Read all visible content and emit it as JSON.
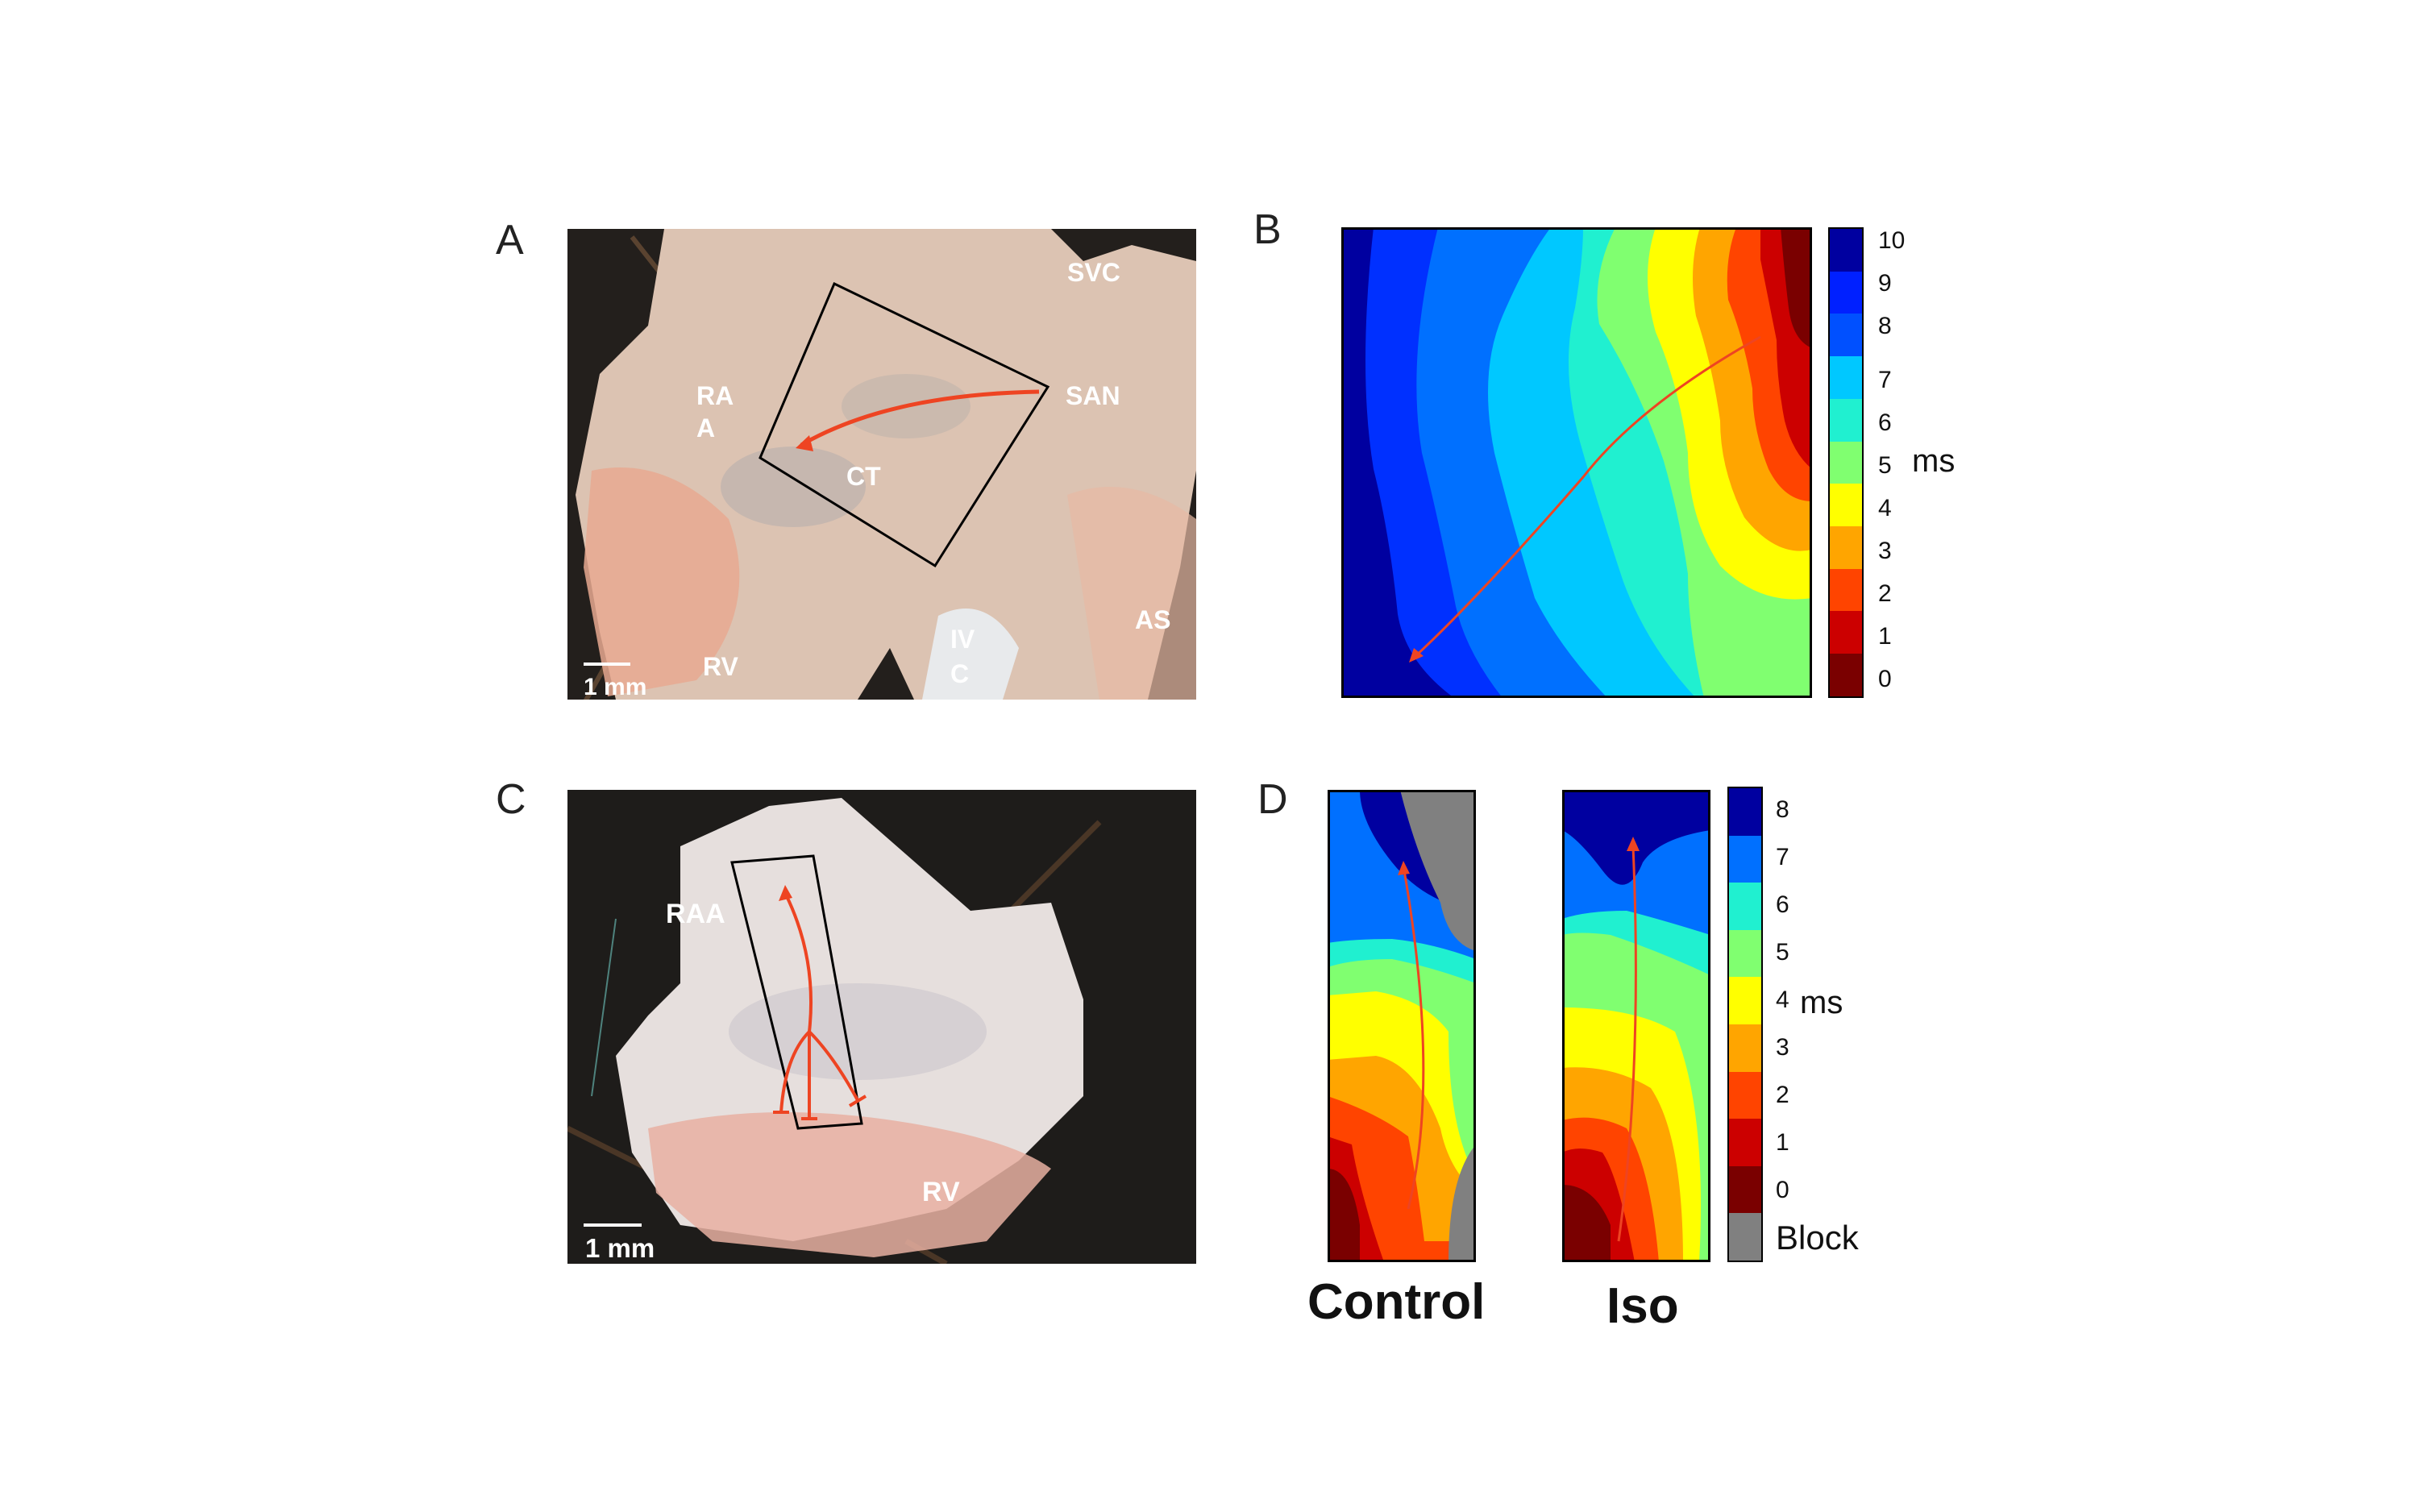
{
  "panels": {
    "a": {
      "letter": "A",
      "labels": {
        "svc": "SVC",
        "san": "SAN",
        "raa_1": "RA",
        "raa_2": "A",
        "ct": "CT",
        "rv": "RV",
        "ivc_1": "IV",
        "ivc_2": "C",
        "as": "AS"
      },
      "scale_bar": "1 mm"
    },
    "b": {
      "letter": "B",
      "colorbar_ticks": [
        "10",
        "9",
        "8",
        "7",
        "6",
        "5",
        "4",
        "3",
        "2",
        "1",
        "0"
      ],
      "unit": "ms"
    },
    "c": {
      "letter": "C",
      "labels": {
        "raa": "RAA",
        "rv": "RV"
      },
      "scale_bar": "1 mm"
    },
    "d": {
      "letter": "D",
      "maps": [
        {
          "title": "Control"
        },
        {
          "title": "Iso"
        }
      ],
      "colorbar_ticks": [
        "8",
        "7",
        "6",
        "5",
        "4",
        "3",
        "2",
        "1",
        "0"
      ],
      "block_label": "Block",
      "unit": "ms"
    }
  },
  "colors": {
    "arrow": "#ee4422",
    "block": "#808080",
    "activation_scale": [
      "#7a0000",
      "#cc0000",
      "#ff4400",
      "#ffa500",
      "#ffff00",
      "#80ff70",
      "#20f0d0",
      "#00c8ff",
      "#0070ff",
      "#0030ff",
      "#0000a0"
    ]
  }
}
